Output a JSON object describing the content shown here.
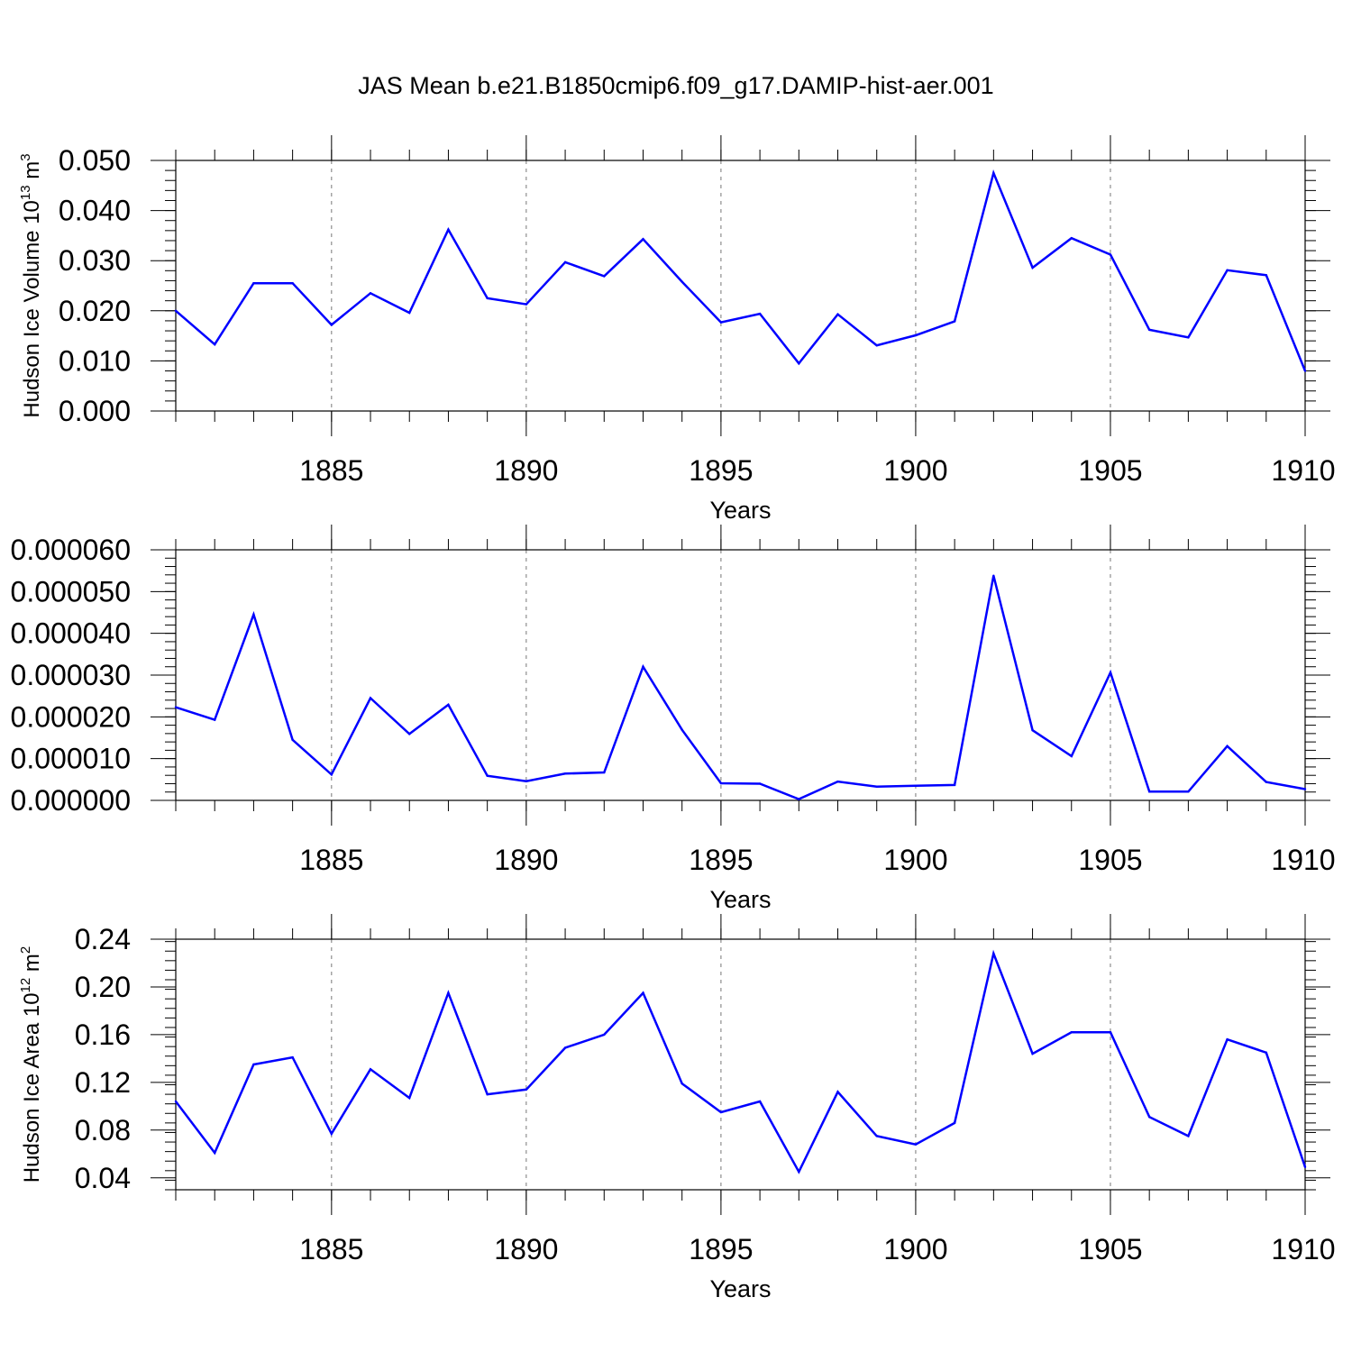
{
  "figure": {
    "title": "JAS Mean b.e21.B1850cmip6.f09_g17.DAMIP-hist-aer.001"
  },
  "colors": {
    "line": "#0000ff",
    "axis": "#000000",
    "grid": "#777777"
  },
  "chart_data": [
    {
      "type": "line",
      "title": "",
      "xlabel": "Years",
      "ylabel": {
        "base": "Hudson Ice Volume 10",
        "exp": "13",
        "unit": " m",
        "unit_exp": "3"
      },
      "xlim": [
        1881,
        1910
      ],
      "ylim": [
        0,
        0.05
      ],
      "x_ticks": [
        1885,
        1890,
        1895,
        1900,
        1905,
        1910
      ],
      "y_ticks": [
        0,
        0.01,
        0.02,
        0.03,
        0.04,
        0.05
      ],
      "y_tick_labels": [
        "0.000",
        "0.010",
        "0.020",
        "0.030",
        "0.040",
        "0.050"
      ],
      "grid": "dashed vertical at major x ticks",
      "x": [
        1881,
        1882,
        1883,
        1884,
        1885,
        1886,
        1887,
        1888,
        1889,
        1890,
        1891,
        1892,
        1893,
        1894,
        1895,
        1896,
        1897,
        1898,
        1899,
        1900,
        1901,
        1902,
        1903,
        1904,
        1905,
        1906,
        1907,
        1908,
        1909,
        1910
      ],
      "values": [
        0.02,
        0.0133,
        0.0255,
        0.0255,
        0.0172,
        0.0235,
        0.0196,
        0.0362,
        0.0225,
        0.0213,
        0.0297,
        0.0269,
        0.0343,
        0.0258,
        0.0177,
        0.0194,
        0.0095,
        0.0193,
        0.0131,
        0.0151,
        0.0179,
        0.0475,
        0.0286,
        0.0345,
        0.0312,
        0.0162,
        0.0147,
        0.0281,
        0.0271,
        0.008
      ]
    },
    {
      "type": "line",
      "title": "",
      "xlabel": "Years",
      "ylabel": null,
      "xlim": [
        1881,
        1910
      ],
      "ylim": [
        0,
        6e-05
      ],
      "x_ticks": [
        1885,
        1890,
        1895,
        1900,
        1905,
        1910
      ],
      "y_ticks": [
        0,
        1e-05,
        2e-05,
        3e-05,
        4e-05,
        5e-05,
        6e-05
      ],
      "y_tick_labels": [
        "0.000000",
        "0.000010",
        "0.000020",
        "0.000030",
        "0.000040",
        "0.000050",
        "0.000060"
      ],
      "grid": "dashed vertical at major x ticks",
      "x": [
        1881,
        1882,
        1883,
        1884,
        1885,
        1886,
        1887,
        1888,
        1889,
        1890,
        1891,
        1892,
        1893,
        1894,
        1895,
        1896,
        1897,
        1898,
        1899,
        1900,
        1901,
        1902,
        1903,
        1904,
        1905,
        1906,
        1907,
        1908,
        1909,
        1910
      ],
      "values": [
        2.23e-05,
        1.93e-05,
        4.45e-05,
        1.45e-05,
        6.2e-06,
        2.45e-05,
        1.59e-05,
        2.29e-05,
        5.9e-06,
        4.6e-06,
        6.4e-06,
        6.7e-06,
        3.2e-05,
        1.69e-05,
        4.1e-06,
        4e-06,
        3e-07,
        4.5e-06,
        3.3e-06,
        3.5e-06,
        3.7e-06,
        5.38e-05,
        1.68e-05,
        1.06e-05,
        3.06e-05,
        2.1e-06,
        2.1e-06,
        1.3e-05,
        4.4e-06,
        2.7e-06
      ]
    },
    {
      "type": "line",
      "title": "",
      "xlabel": "Years",
      "ylabel": {
        "base": "Hudson Ice Area 10",
        "exp": "12",
        "unit": " m",
        "unit_exp": "2"
      },
      "xlim": [
        1881,
        1910
      ],
      "ylim": [
        0.03,
        0.24
      ],
      "x_ticks": [
        1885,
        1890,
        1895,
        1900,
        1905,
        1910
      ],
      "y_ticks": [
        0.04,
        0.08,
        0.12,
        0.16,
        0.2,
        0.24
      ],
      "y_tick_labels": [
        "0.04",
        "0.08",
        "0.12",
        "0.16",
        "0.20",
        "0.24"
      ],
      "grid": "dashed vertical at major x ticks",
      "x": [
        1881,
        1882,
        1883,
        1884,
        1885,
        1886,
        1887,
        1888,
        1889,
        1890,
        1891,
        1892,
        1893,
        1894,
        1895,
        1896,
        1897,
        1898,
        1899,
        1900,
        1901,
        1902,
        1903,
        1904,
        1905,
        1906,
        1907,
        1908,
        1909,
        1910
      ],
      "values": [
        0.104,
        0.061,
        0.135,
        0.141,
        0.077,
        0.131,
        0.107,
        0.195,
        0.11,
        0.114,
        0.149,
        0.16,
        0.195,
        0.119,
        0.095,
        0.104,
        0.045,
        0.112,
        0.075,
        0.068,
        0.086,
        0.228,
        0.144,
        0.162,
        0.162,
        0.091,
        0.075,
        0.156,
        0.145,
        0.049
      ]
    }
  ]
}
